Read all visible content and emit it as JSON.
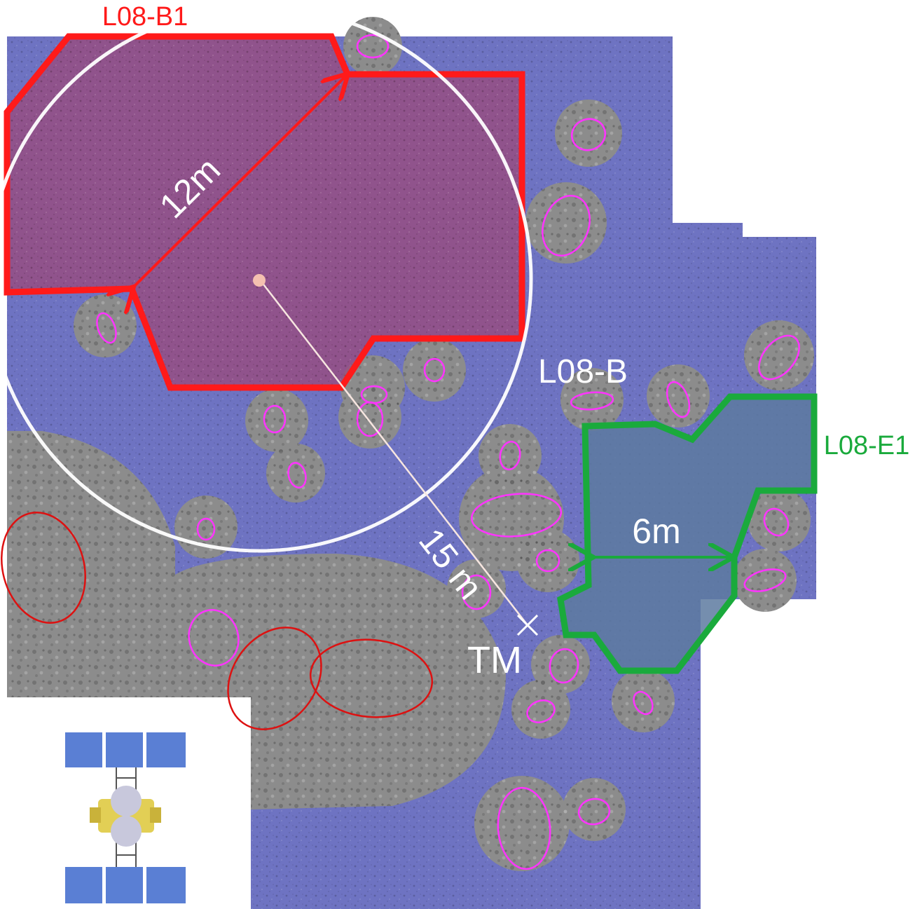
{
  "labels": {
    "region_b1": "L08-B1",
    "region_b": "L08-B",
    "region_e1": "L08-E1",
    "dist_12m": "12m",
    "dist_15m": "15 m",
    "dist_6m": "6m",
    "target_marker": "TM"
  },
  "colors": {
    "background": "#ffffff",
    "safe_zone_tint": "#6e73c2",
    "boulder_gray": "#8c8c8c",
    "b1_outline": "#ff1a1a",
    "b1_fill": "#9a4a7c",
    "e1_outline": "#1aaa3c",
    "e1_fill": "#5d7aa0",
    "circle_b": "#ffffff",
    "small_boulder_marks": "#ff33ff",
    "large_boulder_marks": "#dd1111",
    "center_point": "#f4c0b0",
    "solar_panel": "#5a7fd4"
  },
  "icons": {
    "spacecraft": "spacecraft-icon"
  }
}
